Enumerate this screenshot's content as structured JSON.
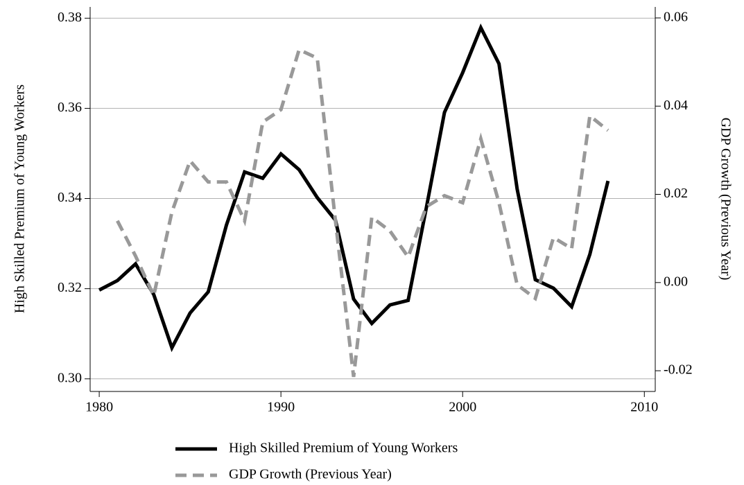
{
  "chart_data": {
    "type": "line",
    "x": [
      1980,
      1981,
      1982,
      1983,
      1984,
      1985,
      1986,
      1987,
      1988,
      1989,
      1990,
      1991,
      1992,
      1993,
      1994,
      1995,
      1996,
      1997,
      1998,
      1999,
      2000,
      2001,
      2002,
      2003,
      2004,
      2005,
      2006,
      2007,
      2008
    ],
    "xlim": [
      1979.5,
      2010.6
    ],
    "xticks": [
      1980,
      1990,
      2000,
      2010
    ],
    "ylabel": "High Skilled Premium of Young Workers",
    "y2label": "GDP Growth (Previous Year)",
    "ylim": [
      0.2972,
      0.3825
    ],
    "yticks": [
      {
        "value": 0.3,
        "label": "0.30"
      },
      0.32,
      0.34,
      0.36,
      0.38
    ],
    "y2lim": [
      -0.0247,
      0.0625
    ],
    "y2ticks": [
      -0.02,
      {
        "value": 0,
        "label": "0.00"
      },
      0.02,
      0.04,
      0.06
    ],
    "grid": true,
    "legend": "bottom",
    "series": [
      {
        "name": "High Skilled Premium of Young Workers",
        "color": "#000000",
        "style": "solid",
        "values": [
          0.3197,
          0.3218,
          0.3255,
          0.3187,
          0.3069,
          0.3146,
          0.3193,
          0.3341,
          0.3459,
          0.3445,
          0.3499,
          0.3464,
          0.3402,
          0.3352,
          0.3177,
          0.3123,
          0.3164,
          0.3174,
          0.3379,
          0.3591,
          0.3679,
          0.3779,
          0.3699,
          0.3421,
          0.322,
          0.3201,
          0.316,
          0.3276,
          0.3439
        ]
      },
      {
        "name": "GDP Growth (Previous Year)",
        "color": "#999999",
        "style": "dashed",
        "axis": "y2",
        "values": [
          null,
          0.014,
          0.006,
          -0.003,
          0.016,
          0.0276,
          0.0228,
          0.0228,
          0.014,
          0.0364,
          0.0392,
          0.0528,
          0.0509,
          0.014,
          -0.0214,
          0.0148,
          0.0117,
          0.0058,
          0.0172,
          0.0197,
          0.0181,
          0.0326,
          0.0181,
          -0.0005,
          -0.0036,
          0.0102,
          0.0077,
          0.0378,
          0.0345
        ]
      }
    ]
  }
}
